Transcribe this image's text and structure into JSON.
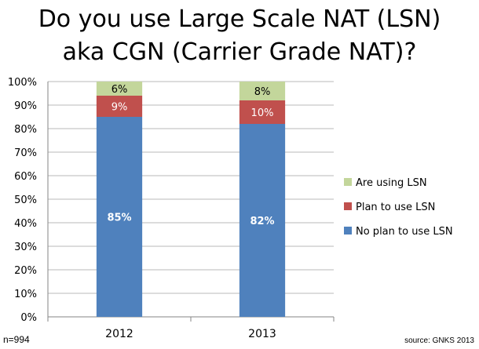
{
  "title_lines": [
    "Do you use Large Scale NAT (LSN)",
    "aka CGN (Carrier Grade NAT)?"
  ],
  "footnote_n": "n=994",
  "source": "source: GNKS 2013",
  "chart_data": {
    "type": "bar",
    "stacked": true,
    "title": "Do you use Large Scale NAT (LSN) aka CGN (Carrier Grade NAT)?",
    "categories": [
      "2012",
      "2013"
    ],
    "series": [
      {
        "name": "No plan to use LSN",
        "values": [
          85,
          82
        ],
        "labels": [
          "85%",
          "82%"
        ],
        "color": "#4f81bd"
      },
      {
        "name": "Plan to use LSN",
        "values": [
          9,
          10
        ],
        "labels": [
          "9%",
          "10%"
        ],
        "color": "#c0504d"
      },
      {
        "name": "Are using LSN",
        "values": [
          6,
          8
        ],
        "labels": [
          "6%",
          "8%"
        ],
        "color": "#c3d69b"
      }
    ],
    "ylim": [
      0,
      100
    ],
    "yticks": [
      "0%",
      "10%",
      "20%",
      "30%",
      "40%",
      "50%",
      "60%",
      "70%",
      "80%",
      "90%",
      "100%"
    ],
    "grid": true,
    "legend_position": "right",
    "legend_order": [
      "Are using LSN",
      "Plan to use LSN",
      "No plan to use LSN"
    ]
  }
}
